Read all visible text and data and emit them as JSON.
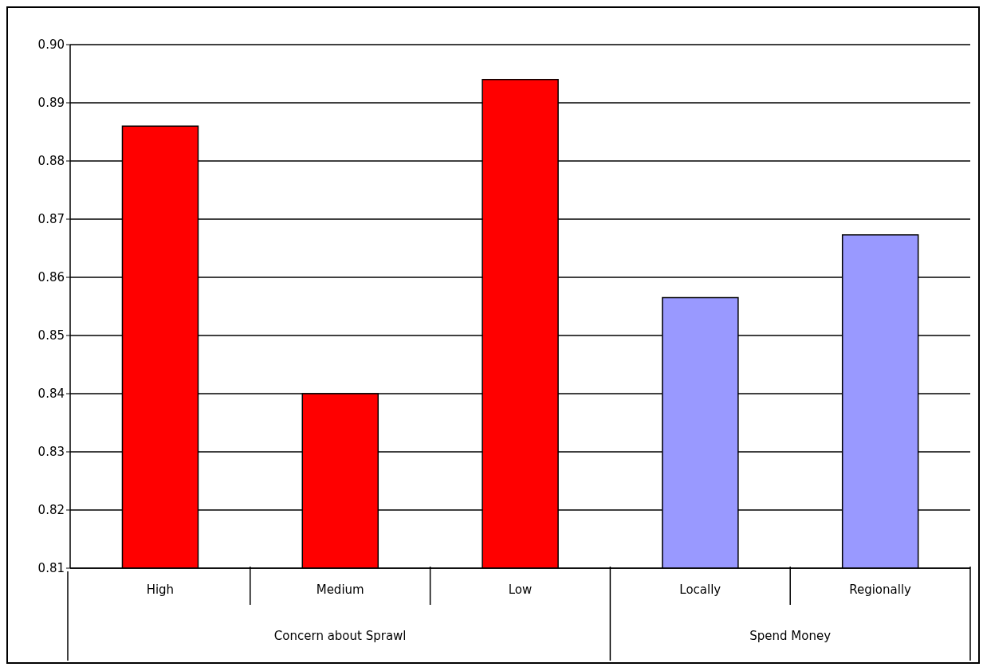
{
  "chart_data": {
    "type": "bar",
    "categories": [
      "High",
      "Medium",
      "Low",
      "Locally",
      "Regionally"
    ],
    "values": [
      0.886,
      0.84,
      0.894,
      0.8565,
      0.8673
    ],
    "colors": [
      "#ff0000",
      "#ff0000",
      "#ff0000",
      "#9999ff",
      "#9999ff"
    ],
    "ylim": [
      0.81,
      0.9
    ],
    "yticks": [
      {
        "value": 0.81,
        "label": "0.81"
      },
      {
        "value": 0.82,
        "label": "0.82"
      },
      {
        "value": 0.83,
        "label": "0.83"
      },
      {
        "value": 0.84,
        "label": "0.84"
      },
      {
        "value": 0.85,
        "label": "0.85"
      },
      {
        "value": 0.86,
        "label": "0.86"
      },
      {
        "value": 0.87,
        "label": "0.87"
      },
      {
        "value": 0.88,
        "label": "0.88"
      },
      {
        "value": 0.89,
        "label": "0.89"
      },
      {
        "value": 0.9,
        "label": "0.90"
      }
    ],
    "grid": "y",
    "annotations": [
      "Concern about Sprawl",
      "Spend Money"
    ]
  }
}
